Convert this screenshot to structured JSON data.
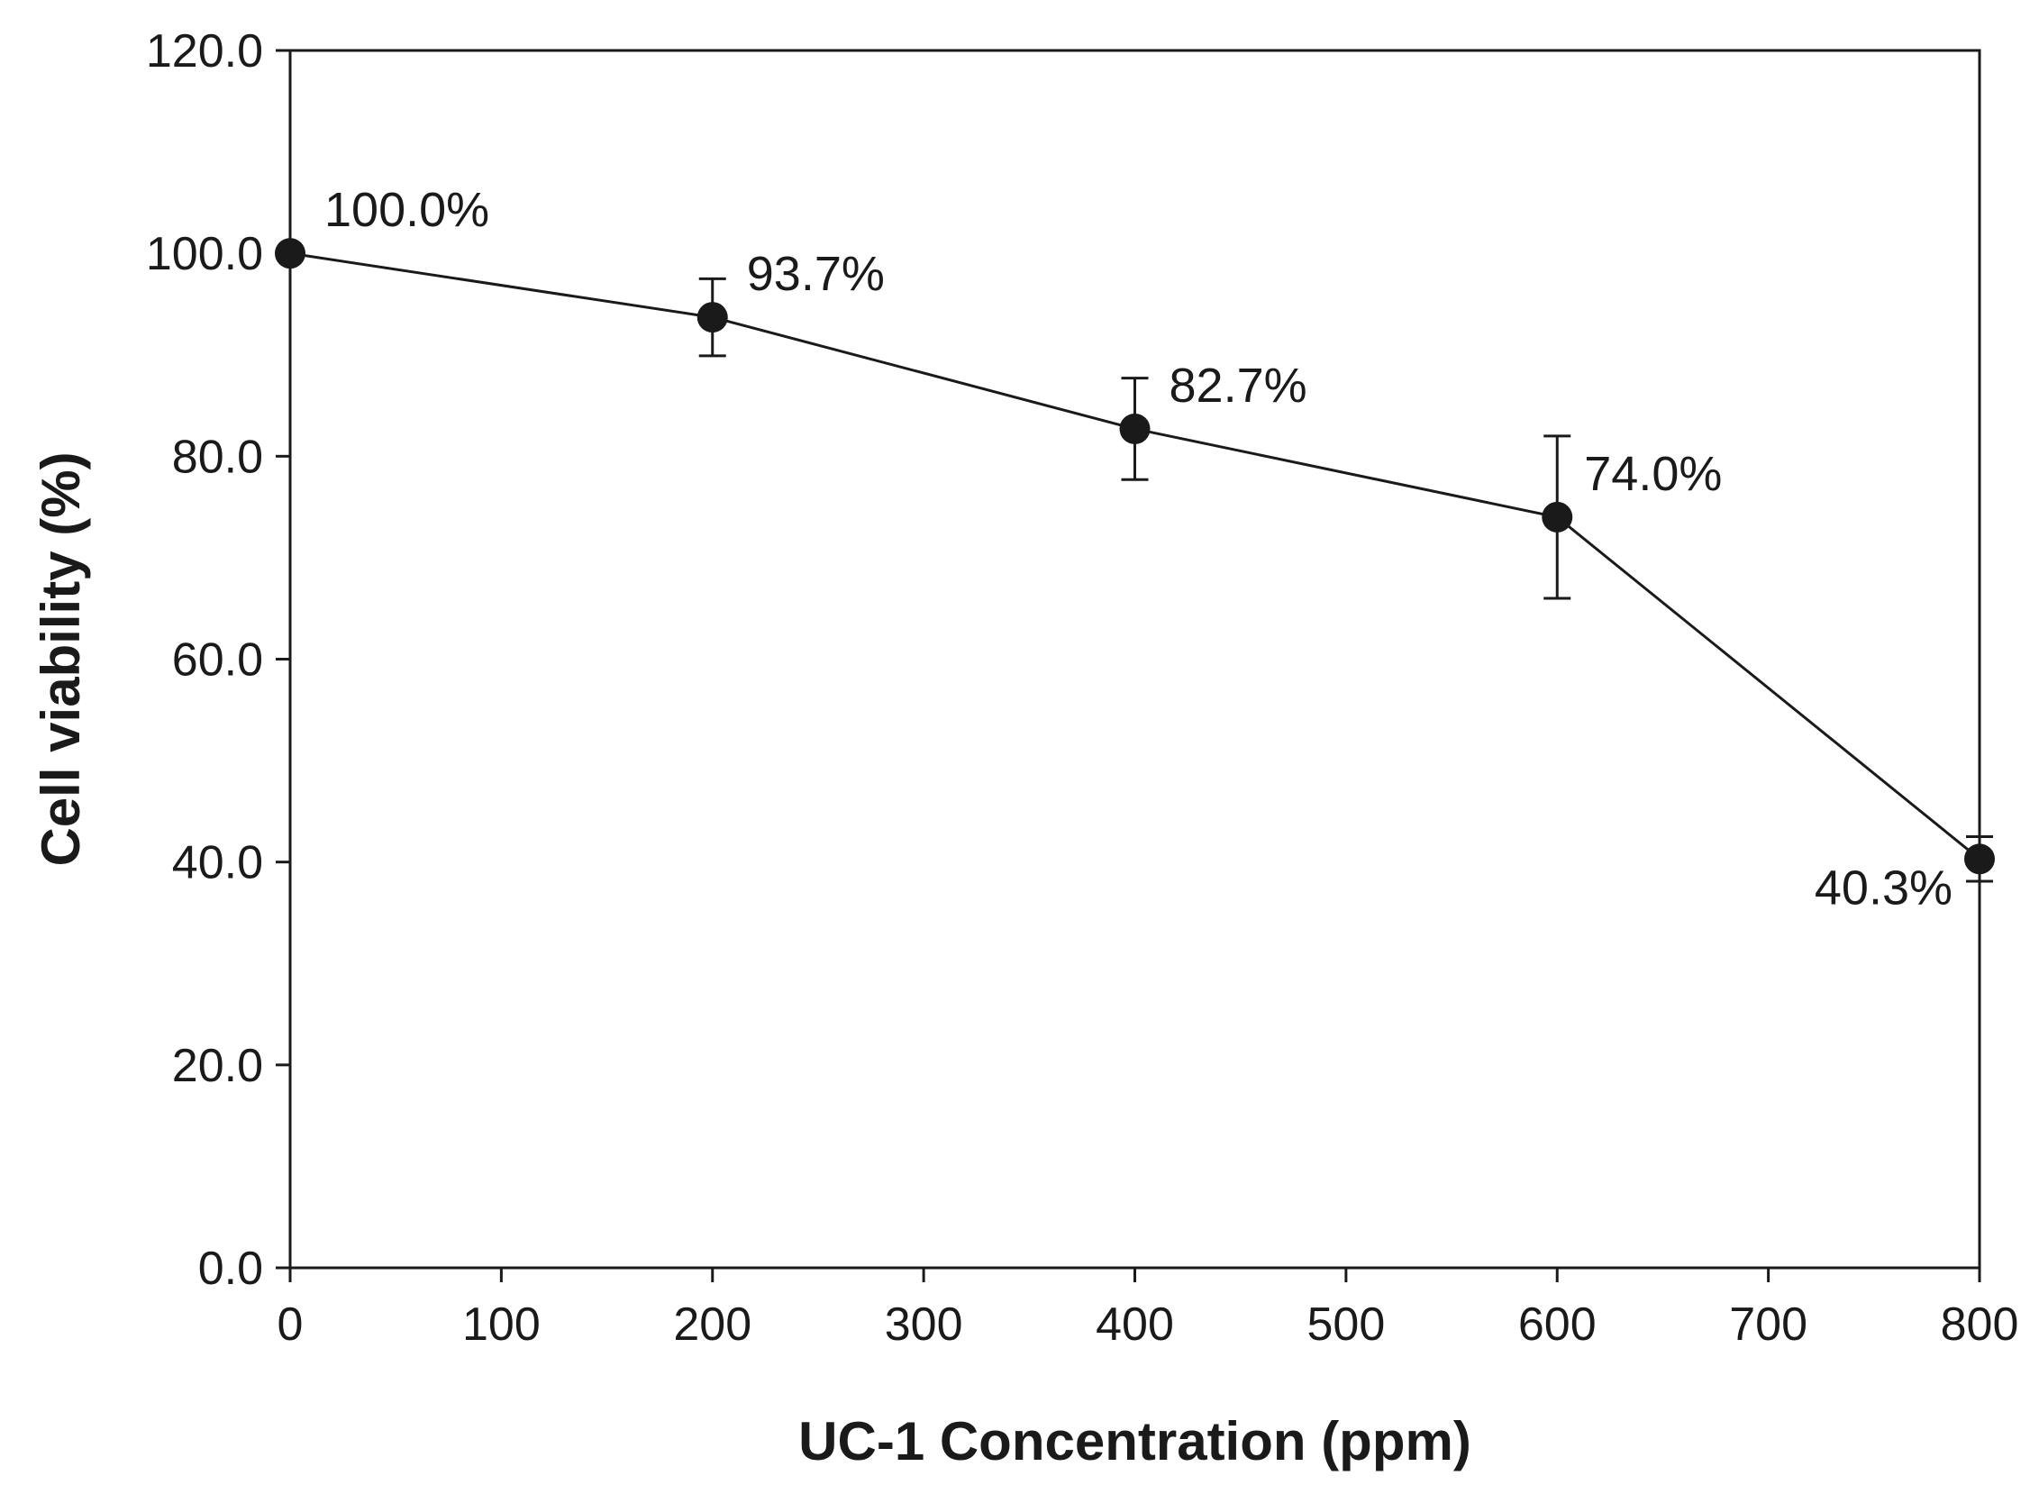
{
  "chart_data": {
    "type": "line",
    "title": "",
    "xlabel": "UC-1 Concentration (ppm)",
    "ylabel": "Cell viability (%)",
    "xlim": [
      0,
      800
    ],
    "ylim": [
      0,
      120
    ],
    "x_ticks": [
      0,
      100,
      200,
      300,
      400,
      500,
      600,
      700,
      800
    ],
    "x_tick_labels": [
      "0",
      "100",
      "200",
      "300",
      "400",
      "500",
      "600",
      "700",
      "800"
    ],
    "y_ticks": [
      0,
      20,
      40,
      60,
      80,
      100,
      120
    ],
    "y_tick_labels": [
      "0.0",
      "20.0",
      "40.0",
      "60.0",
      "80.0",
      "100.0",
      "120.0"
    ],
    "grid": false,
    "series": [
      {
        "name": "Cell viability",
        "x": [
          0,
          200,
          400,
          600,
          800
        ],
        "values": [
          100.0,
          93.7,
          82.7,
          74.0,
          40.3
        ],
        "error": [
          0,
          3.8,
          5.0,
          8.0,
          2.2
        ],
        "labels": [
          "100.0%",
          "93.7%",
          "82.7%",
          "74.0%",
          "40.3%"
        ],
        "color": "#1a1a1a"
      }
    ]
  }
}
